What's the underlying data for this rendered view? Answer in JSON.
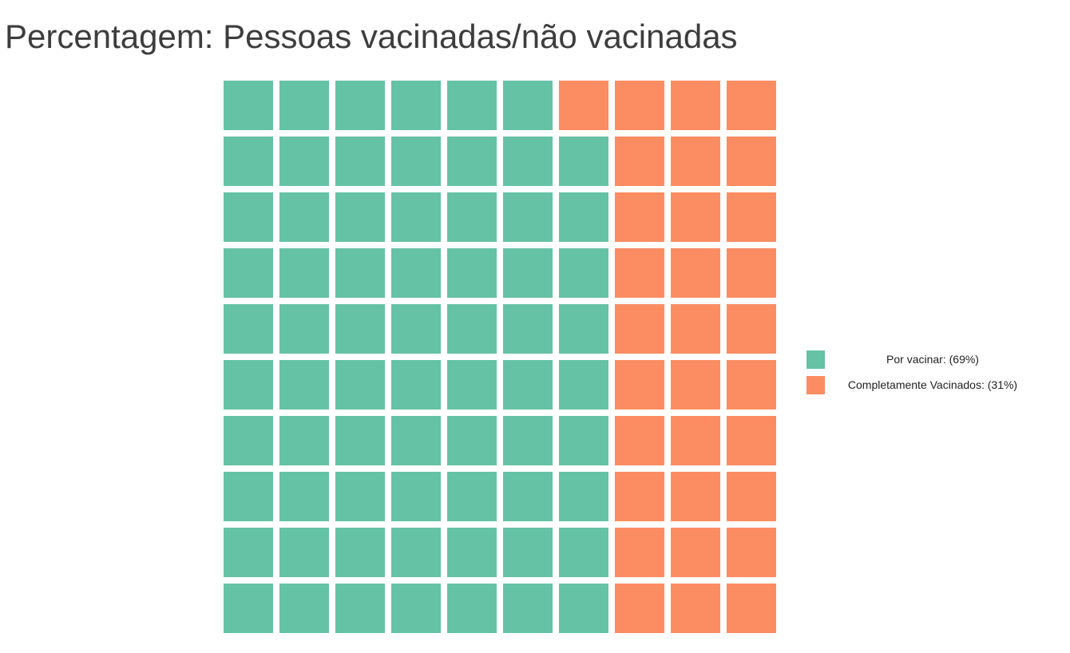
{
  "chart_data": {
    "type": "waffle",
    "title": "Percentagem: Pessoas vacinadas/não vacinadas",
    "rows": 10,
    "columns": 10,
    "fill_order": "column-major from bottom-left",
    "categories": [
      {
        "name": "Por vacinar",
        "label": "Por vacinar:  (69%)",
        "percent": 69,
        "value": 69,
        "color": "#66c2a5"
      },
      {
        "name": "Completamente Vacinados",
        "label": "Completamente Vacinados:  (31%)",
        "percent": 31,
        "value": 31,
        "color": "#fc8d62"
      }
    ],
    "legend": "right",
    "grid": false
  }
}
